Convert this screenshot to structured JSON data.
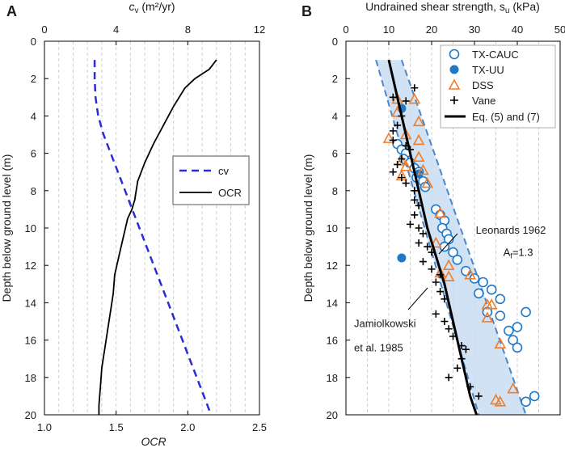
{
  "chart_data": [
    {
      "panel": "A",
      "type": "line",
      "top_axis_label": "c_v (m²/yr)",
      "top_axis_label_main": "c",
      "top_axis_label_sub": "v",
      "top_axis_label_units": " (m²/yr)",
      "top_xlim": [
        0,
        12
      ],
      "top_ticks": [
        "0",
        "4",
        "8",
        "12"
      ],
      "bottom_axis_label": "OCR",
      "bottom_xlim": [
        1.0,
        2.5
      ],
      "bottom_ticks": [
        "1.0",
        "1.5",
        "2.0",
        "2.5"
      ],
      "ylabel": "Depth below ground level (m)",
      "ylim": [
        0,
        20
      ],
      "yticks": [
        "0",
        "2",
        "4",
        "6",
        "8",
        "10",
        "12",
        "14",
        "16",
        "18",
        "20"
      ],
      "legend_position": "right-middle",
      "series": [
        {
          "name": "cv",
          "axis": "top",
          "style": "dashed",
          "color": "#2b2bd9",
          "points": [
            [
              2.8,
              1
            ],
            [
              2.8,
              2
            ],
            [
              2.85,
              3
            ],
            [
              3.0,
              4
            ],
            [
              3.3,
              5
            ],
            [
              3.7,
              6
            ],
            [
              4.1,
              7
            ],
            [
              4.5,
              8
            ],
            [
              4.9,
              9
            ],
            [
              5.3,
              10
            ],
            [
              5.7,
              11
            ],
            [
              6.1,
              12
            ],
            [
              6.5,
              13
            ],
            [
              6.9,
              14
            ],
            [
              7.3,
              15
            ],
            [
              7.7,
              16
            ],
            [
              8.1,
              17
            ],
            [
              8.5,
              18
            ],
            [
              8.9,
              19
            ],
            [
              9.3,
              20
            ]
          ]
        },
        {
          "name": "OCR",
          "axis": "bottom",
          "style": "solid",
          "color": "#000000",
          "points": [
            [
              2.2,
              1
            ],
            [
              2.15,
              1.5
            ],
            [
              2.05,
              2
            ],
            [
              1.98,
              2.5
            ],
            [
              1.9,
              3.5
            ],
            [
              1.83,
              4.5
            ],
            [
              1.76,
              5.5
            ],
            [
              1.7,
              6.5
            ],
            [
              1.65,
              7.5
            ],
            [
              1.63,
              8.5
            ],
            [
              1.61,
              9
            ],
            [
              1.58,
              9.5
            ],
            [
              1.55,
              10.5
            ],
            [
              1.52,
              11.5
            ],
            [
              1.49,
              12.5
            ],
            [
              1.48,
              13.5
            ],
            [
              1.46,
              14.5
            ],
            [
              1.44,
              15.5
            ],
            [
              1.42,
              16.5
            ],
            [
              1.4,
              17.5
            ],
            [
              1.39,
              18.5
            ],
            [
              1.38,
              19.5
            ],
            [
              1.38,
              20
            ]
          ]
        }
      ]
    },
    {
      "panel": "B",
      "type": "scatter",
      "xlabel": "Undrained shear strength, s_u (kPa)",
      "xlabel_main": "Undrained shear strength, s",
      "xlabel_sub": "u",
      "xlabel_units": " (kPa)",
      "xlim": [
        0,
        50
      ],
      "xticks": [
        "0",
        "10",
        "20",
        "30",
        "40",
        "50"
      ],
      "ylabel": "Depth below ground level (m)",
      "ylim": [
        0,
        20
      ],
      "yticks": [
        "0",
        "2",
        "4",
        "6",
        "8",
        "10",
        "12",
        "14",
        "16",
        "18",
        "20"
      ],
      "legend_position": "top-right",
      "band": {
        "name": "Leonards 1962 A_f=1.3",
        "color": "#c6dcf2",
        "left": [
          [
            7,
            1
          ],
          [
            31,
            20
          ]
        ],
        "right": [
          [
            13,
            1
          ],
          [
            42,
            20
          ]
        ]
      },
      "series": [
        {
          "name": "TX-CAUC",
          "marker": "open-circle",
          "color": "#1f78c8",
          "points": [
            [
              12,
              5.5
            ],
            [
              13,
              5.8
            ],
            [
              14,
              6.0
            ],
            [
              13.5,
              6.3
            ],
            [
              15,
              6.5
            ],
            [
              16,
              6.8
            ],
            [
              17,
              7.0
            ],
            [
              16.5,
              7.3
            ],
            [
              18,
              7.5
            ],
            [
              18.5,
              7.8
            ],
            [
              21,
              9.0
            ],
            [
              22,
              9.3
            ],
            [
              23,
              9.6
            ],
            [
              22.5,
              10.0
            ],
            [
              23.5,
              10.3
            ],
            [
              24,
              10.6
            ],
            [
              23,
              11.0
            ],
            [
              25,
              11.3
            ],
            [
              26,
              11.7
            ],
            [
              28,
              12.3
            ],
            [
              30,
              12.7
            ],
            [
              32,
              12.9
            ],
            [
              31,
              13.5
            ],
            [
              34,
              13.3
            ],
            [
              36,
              13.8
            ],
            [
              33,
              14.5
            ],
            [
              36,
              14.7
            ],
            [
              42,
              14.5
            ],
            [
              40,
              15.3
            ],
            [
              38,
              15.5
            ],
            [
              39,
              16.0
            ],
            [
              40,
              16.4
            ],
            [
              42,
              19.3
            ],
            [
              44,
              19.0
            ]
          ]
        },
        {
          "name": "TX-UU",
          "marker": "filled-circle",
          "color": "#1f78c8",
          "points": [
            [
              13,
              3.6
            ],
            [
              17,
              7.1
            ],
            [
              13,
              11.6
            ]
          ]
        },
        {
          "name": "DSS",
          "marker": "open-triangle",
          "color": "#f07d2a",
          "points": [
            [
              12,
              3.1
            ],
            [
              16,
              3.1
            ],
            [
              12,
              3.8
            ],
            [
              17,
              4.3
            ],
            [
              14,
              5.0
            ],
            [
              17,
              5.3
            ],
            [
              10,
              5.2
            ],
            [
              17,
              6.2
            ],
            [
              13,
              6.4
            ],
            [
              14,
              6.7
            ],
            [
              13,
              7.2
            ],
            [
              18,
              6.9
            ],
            [
              19,
              7.6
            ],
            [
              22,
              9.2
            ],
            [
              21,
              10.8
            ],
            [
              24,
              12.0
            ],
            [
              22,
              12.4
            ],
            [
              24,
              12.6
            ],
            [
              29,
              12.5
            ],
            [
              33,
              14.1
            ],
            [
              34,
              14.1
            ],
            [
              33,
              14.8
            ],
            [
              36,
              16.2
            ],
            [
              39,
              18.6
            ],
            [
              35,
              19.2
            ],
            [
              36,
              19.3
            ]
          ]
        },
        {
          "name": "Vane",
          "marker": "plus",
          "color": "#000000",
          "points": [
            [
              16,
              2.5
            ],
            [
              11,
              3.0
            ],
            [
              14,
              3.2
            ],
            [
              13,
              4.0
            ],
            [
              12,
              4.5
            ],
            [
              11,
              4.8
            ],
            [
              11,
              5.3
            ],
            [
              14,
              5.6
            ],
            [
              15,
              5.8
            ],
            [
              13,
              6.3
            ],
            [
              12,
              6.6
            ],
            [
              11,
              7.0
            ],
            [
              13,
              7.3
            ],
            [
              14,
              7.6
            ],
            [
              16,
              8.0
            ],
            [
              16,
              8.5
            ],
            [
              17,
              8.8
            ],
            [
              16,
              9.3
            ],
            [
              15,
              9.8
            ],
            [
              17,
              10.0
            ],
            [
              18,
              10.3
            ],
            [
              17,
              10.8
            ],
            [
              19,
              11.0
            ],
            [
              20,
              11.3
            ],
            [
              18,
              11.8
            ],
            [
              20,
              12.2
            ],
            [
              22,
              12.5
            ],
            [
              21,
              12.9
            ],
            [
              22,
              13.4
            ],
            [
              23,
              13.8
            ],
            [
              21,
              14.6
            ],
            [
              23,
              15.0
            ],
            [
              24,
              15.4
            ],
            [
              25,
              15.8
            ],
            [
              27,
              16.3
            ],
            [
              28,
              16.5
            ],
            [
              27,
              17.0
            ],
            [
              26,
              17.5
            ],
            [
              24,
              18.0
            ],
            [
              29,
              18.5
            ],
            [
              31,
              19.0
            ]
          ]
        },
        {
          "name": "Eq. (5) and (7)",
          "marker": "line",
          "color": "#000000",
          "points": [
            [
              10,
              1
            ],
            [
              12,
              3
            ],
            [
              14,
              5
            ],
            [
              15,
              6
            ],
            [
              17,
              8
            ],
            [
              19,
              10
            ],
            [
              21,
              11.5
            ],
            [
              23,
              13
            ],
            [
              25,
              15
            ],
            [
              27,
              17
            ],
            [
              29,
              19
            ],
            [
              30.5,
              20
            ]
          ]
        }
      ],
      "annotations": [
        {
          "text": "Leonards 1962",
          "x": 38.5,
          "y": 10.3
        },
        {
          "text_main": "A",
          "text_sub": "f",
          "text_tail": "=1.3",
          "x": 40.2,
          "y": 11.5
        },
        {
          "text": "Jamiolkowski",
          "x": 3,
          "y": 15.3
        },
        {
          "text": "et al. 1985",
          "x": 3,
          "y": 16.6
        }
      ]
    }
  ]
}
